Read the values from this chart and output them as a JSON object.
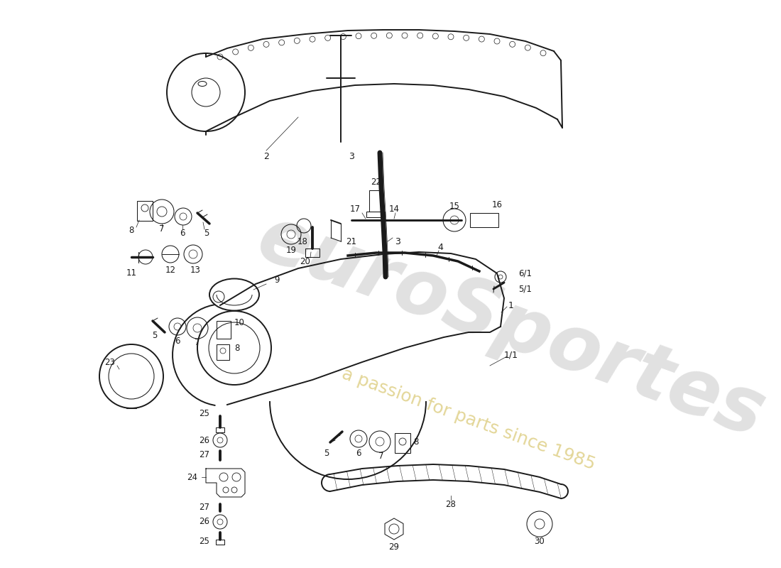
{
  "bg_color": "#ffffff",
  "line_color": "#1a1a1a",
  "watermark1_color": "#c8c8c8",
  "watermark2_color": "#d4c060",
  "watermark1_alpha": 0.55,
  "watermark2_alpha": 0.65,
  "lw_main": 1.4,
  "lw_thin": 0.75,
  "lw_leader": 0.5
}
